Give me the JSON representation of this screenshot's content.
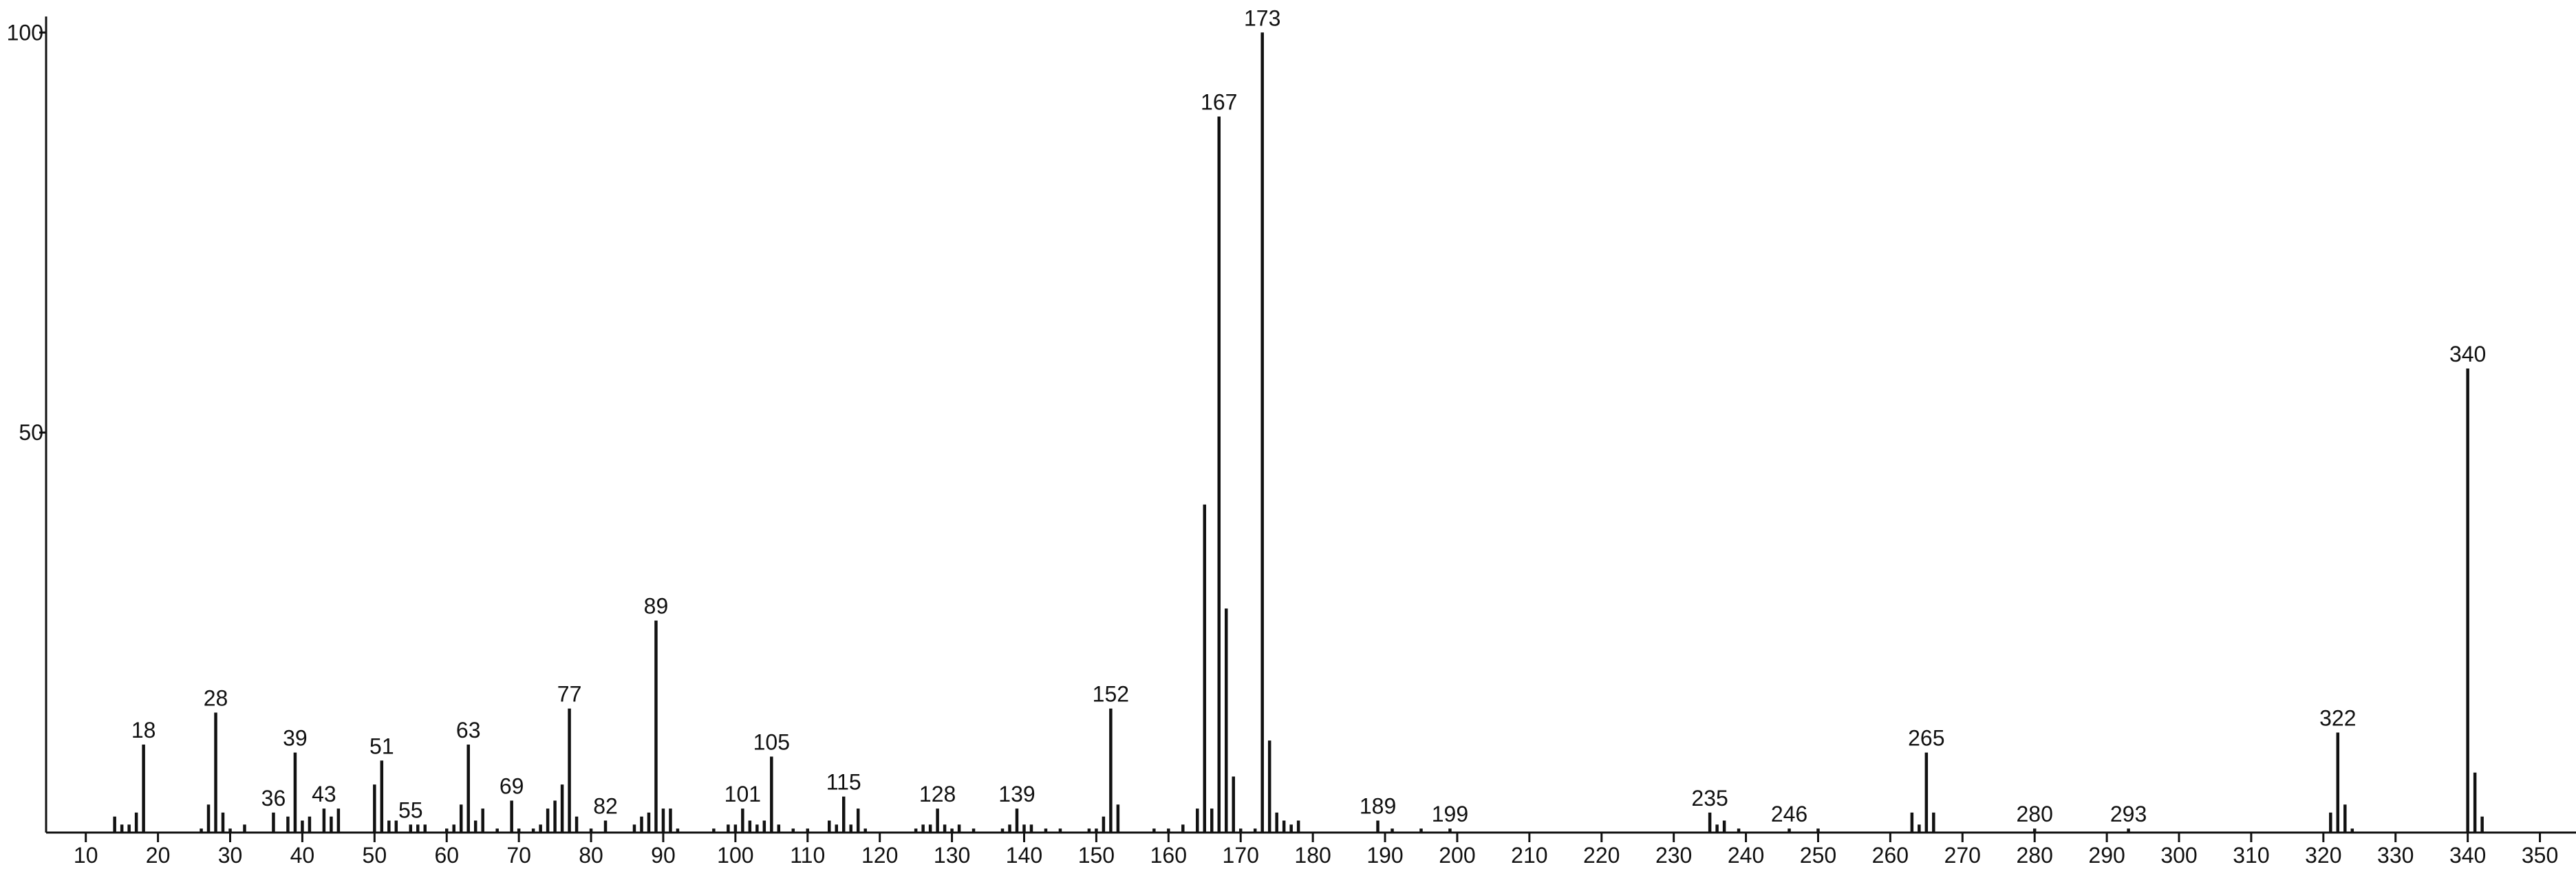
{
  "chart_data": {
    "type": "stem",
    "x": [
      14,
      15,
      16,
      17,
      18,
      26,
      27,
      28,
      29,
      30,
      32,
      36,
      38,
      39,
      40,
      41,
      43,
      44,
      45,
      50,
      51,
      52,
      53,
      55,
      56,
      57,
      60,
      61,
      62,
      63,
      64,
      65,
      67,
      69,
      70,
      72,
      73,
      74,
      75,
      76,
      77,
      78,
      80,
      82,
      86,
      87,
      88,
      89,
      90,
      91,
      92,
      97,
      99,
      100,
      101,
      102,
      103,
      104,
      105,
      106,
      108,
      110,
      113,
      114,
      115,
      116,
      117,
      118,
      125,
      126,
      127,
      128,
      129,
      130,
      131,
      133,
      137,
      138,
      139,
      140,
      141,
      143,
      145,
      149,
      150,
      151,
      152,
      153,
      158,
      160,
      162,
      164,
      165,
      166,
      167,
      168,
      169,
      170,
      172,
      173,
      174,
      175,
      176,
      177,
      178,
      189,
      191,
      195,
      199,
      235,
      236,
      237,
      239,
      246,
      250,
      263,
      264,
      265,
      266,
      280,
      293,
      321,
      322,
      323,
      324,
      340,
      341,
      342
    ],
    "values": [
      2,
      1,
      1,
      2.5,
      11,
      0.5,
      3.5,
      15,
      2.5,
      0.5,
      1,
      2.5,
      2,
      10,
      1.5,
      2,
      3,
      2,
      3,
      6,
      9,
      1.5,
      1.5,
      1,
      1,
      1,
      0.5,
      1,
      3.5,
      11,
      1.5,
      3,
      0.5,
      4,
      0.5,
      0.5,
      1,
      3,
      4,
      6,
      15.5,
      2,
      0.5,
      1.5,
      1,
      2,
      2.5,
      26.5,
      3,
      3,
      0.5,
      0.5,
      1,
      1,
      3,
      1.5,
      1,
      1.5,
      9.5,
      1,
      0.5,
      0.5,
      1.5,
      1,
      4.5,
      1,
      3,
      0.5,
      0.5,
      1,
      1,
      3,
      1,
      0.5,
      1,
      0.5,
      0.5,
      1,
      3,
      1,
      1,
      0.5,
      0.5,
      0.5,
      0.5,
      2,
      15.5,
      3.5,
      0.5,
      0.5,
      1,
      3,
      41,
      3,
      89.5,
      28,
      7,
      0.5,
      0.5,
      100,
      11.5,
      2.5,
      1.5,
      1,
      1.5,
      1.5,
      0.5,
      0.5,
      0.5,
      2.5,
      1,
      1.5,
      0.5,
      0.5,
      0.5,
      2.5,
      1,
      10,
      2.5,
      0.5,
      0.5,
      2.5,
      12.5,
      3.5,
      0.5,
      58,
      7.5,
      2
    ],
    "labeled": [
      false,
      false,
      false,
      false,
      true,
      false,
      false,
      true,
      false,
      false,
      false,
      true,
      false,
      true,
      false,
      false,
      true,
      false,
      false,
      false,
      true,
      false,
      false,
      true,
      false,
      false,
      false,
      false,
      false,
      true,
      false,
      false,
      false,
      true,
      false,
      false,
      false,
      false,
      false,
      false,
      true,
      false,
      false,
      true,
      false,
      false,
      false,
      true,
      false,
      false,
      false,
      false,
      false,
      false,
      true,
      false,
      false,
      false,
      true,
      false,
      false,
      false,
      false,
      false,
      true,
      false,
      false,
      false,
      false,
      false,
      false,
      true,
      false,
      false,
      false,
      false,
      false,
      false,
      true,
      false,
      false,
      false,
      false,
      false,
      false,
      false,
      true,
      false,
      false,
      false,
      false,
      false,
      false,
      false,
      true,
      false,
      false,
      false,
      false,
      true,
      false,
      false,
      false,
      false,
      false,
      true,
      false,
      false,
      true,
      true,
      false,
      false,
      false,
      true,
      false,
      false,
      false,
      true,
      false,
      true,
      true,
      false,
      true,
      false,
      false,
      true,
      false,
      false
    ],
    "color": "#111111",
    "xlim": [
      4.5,
      355
    ],
    "xticks": [
      10,
      20,
      30,
      40,
      50,
      60,
      70,
      80,
      90,
      100,
      110,
      120,
      130,
      140,
      150,
      160,
      170,
      180,
      190,
      200,
      210,
      220,
      230,
      240,
      250,
      260,
      270,
      280,
      290,
      300,
      310,
      320,
      330,
      340,
      350
    ],
    "ylim": [
      0,
      102
    ],
    "yticks": [
      50,
      100
    ]
  }
}
